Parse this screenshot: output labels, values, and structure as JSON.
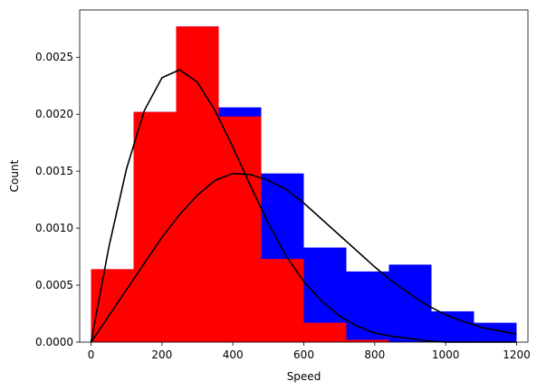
{
  "chart_data": {
    "type": "bar",
    "title": "",
    "xlabel": "Speed",
    "ylabel": "Count",
    "xlim": [
      -32,
      1232
    ],
    "ylim": [
      0,
      0.002915
    ],
    "xticks": [
      0,
      200,
      400,
      600,
      800,
      1000,
      1200
    ],
    "yticks": [
      0.0,
      0.0005,
      0.001,
      0.0015,
      0.002,
      0.0025
    ],
    "ytick_labels": [
      "0.0000",
      "0.0005",
      "0.0010",
      "0.0015",
      "0.0020",
      "0.0025"
    ],
    "grid": false,
    "histograms": [
      {
        "color": "#0000ff",
        "bin_edges": [
          0,
          120,
          240,
          360,
          480,
          600,
          720,
          840,
          960,
          1080,
          1200
        ],
        "values": [
          0.00064,
          0.00202,
          0.00277,
          0.00206,
          0.00148,
          0.00083,
          0.00062,
          0.00068,
          0.00027,
          0.00017
        ]
      },
      {
        "color": "#ff0000",
        "bin_edges": [
          0,
          120,
          240,
          360,
          480,
          600,
          720,
          840
        ],
        "values": [
          0.00064,
          0.00202,
          0.00277,
          0.00198,
          0.00073,
          0.00017,
          2e-05
        ]
      }
    ],
    "curves": [
      {
        "color": "#000000",
        "x": [
          0,
          50,
          100,
          150,
          200,
          250,
          300,
          350,
          400,
          450,
          500,
          550,
          600,
          650,
          700,
          750,
          800,
          850,
          900,
          950,
          1000,
          1050,
          1100,
          1150,
          1200
        ],
        "y": [
          0.0,
          0.00083,
          0.00152,
          0.00203,
          0.00232,
          0.00239,
          0.00228,
          0.00203,
          0.00171,
          0.00137,
          0.00104,
          0.00076,
          0.00053,
          0.00036,
          0.00023,
          0.00014,
          8e-05,
          5e-05,
          3e-05,
          1e-05,
          0.0,
          0.0,
          0.0,
          0.0,
          0.0
        ]
      },
      {
        "color": "#000000",
        "x": [
          0,
          50,
          100,
          150,
          200,
          250,
          300,
          350,
          400,
          450,
          500,
          550,
          600,
          650,
          700,
          750,
          800,
          850,
          900,
          950,
          1000,
          1050,
          1100,
          1150,
          1200
        ],
        "y": [
          0.0,
          0.00023,
          0.00046,
          0.00069,
          0.00092,
          0.00112,
          0.00129,
          0.00142,
          0.00148,
          0.00147,
          0.00142,
          0.00134,
          0.00122,
          0.00108,
          0.00094,
          0.0008,
          0.00066,
          0.00053,
          0.00042,
          0.00032,
          0.00024,
          0.00018,
          0.00013,
          0.0001,
          7e-05
        ]
      }
    ]
  }
}
